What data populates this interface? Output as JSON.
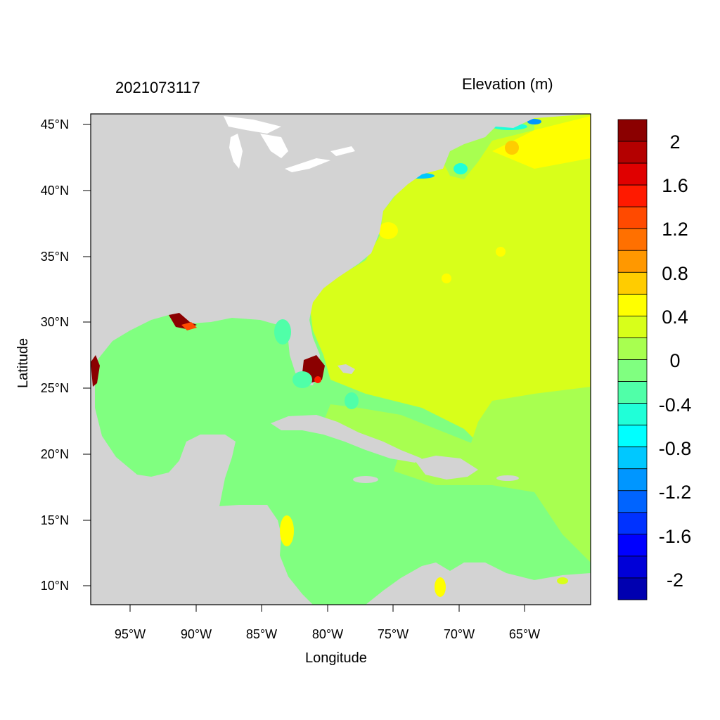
{
  "header": {
    "date": "2021073117",
    "variable": "Elevation (m)"
  },
  "axes": {
    "xlabel": "Longitude",
    "ylabel": "Latitude",
    "x_ticks": [
      "95°W",
      "90°W",
      "85°W",
      "80°W",
      "75°W",
      "70°W",
      "65°W"
    ],
    "y_ticks": [
      "45°N",
      "40°N",
      "35°N",
      "30°N",
      "25°N",
      "20°N",
      "15°N",
      "10°N"
    ]
  },
  "colorbar": {
    "labels": [
      "2",
      "1.6",
      "1.2",
      "0.8",
      "0.4",
      "0",
      "-0.4",
      "-0.8",
      "-1.2",
      "-1.6",
      "-2"
    ],
    "colors": [
      "#8b0000",
      "#b40000",
      "#e00000",
      "#ff1a00",
      "#ff4a00",
      "#ff7000",
      "#ff9800",
      "#ffcc00",
      "#ffff00",
      "#d8ff1a",
      "#a8ff50",
      "#80ff80",
      "#50ffa8",
      "#20ffd8",
      "#00ffff",
      "#00c8ff",
      "#0096ff",
      "#0064ff",
      "#0032ff",
      "#0000ff",
      "#0000d8",
      "#0000b0"
    ]
  },
  "map": {
    "land_color": "#d3d3d3",
    "lake_color": "#ffffff",
    "gulf_caribbean_color": "#80ff80",
    "atlantic_color": "#d8ff1a",
    "shelf_color": "#a8ff50",
    "surge_color": "#8b0000"
  }
}
